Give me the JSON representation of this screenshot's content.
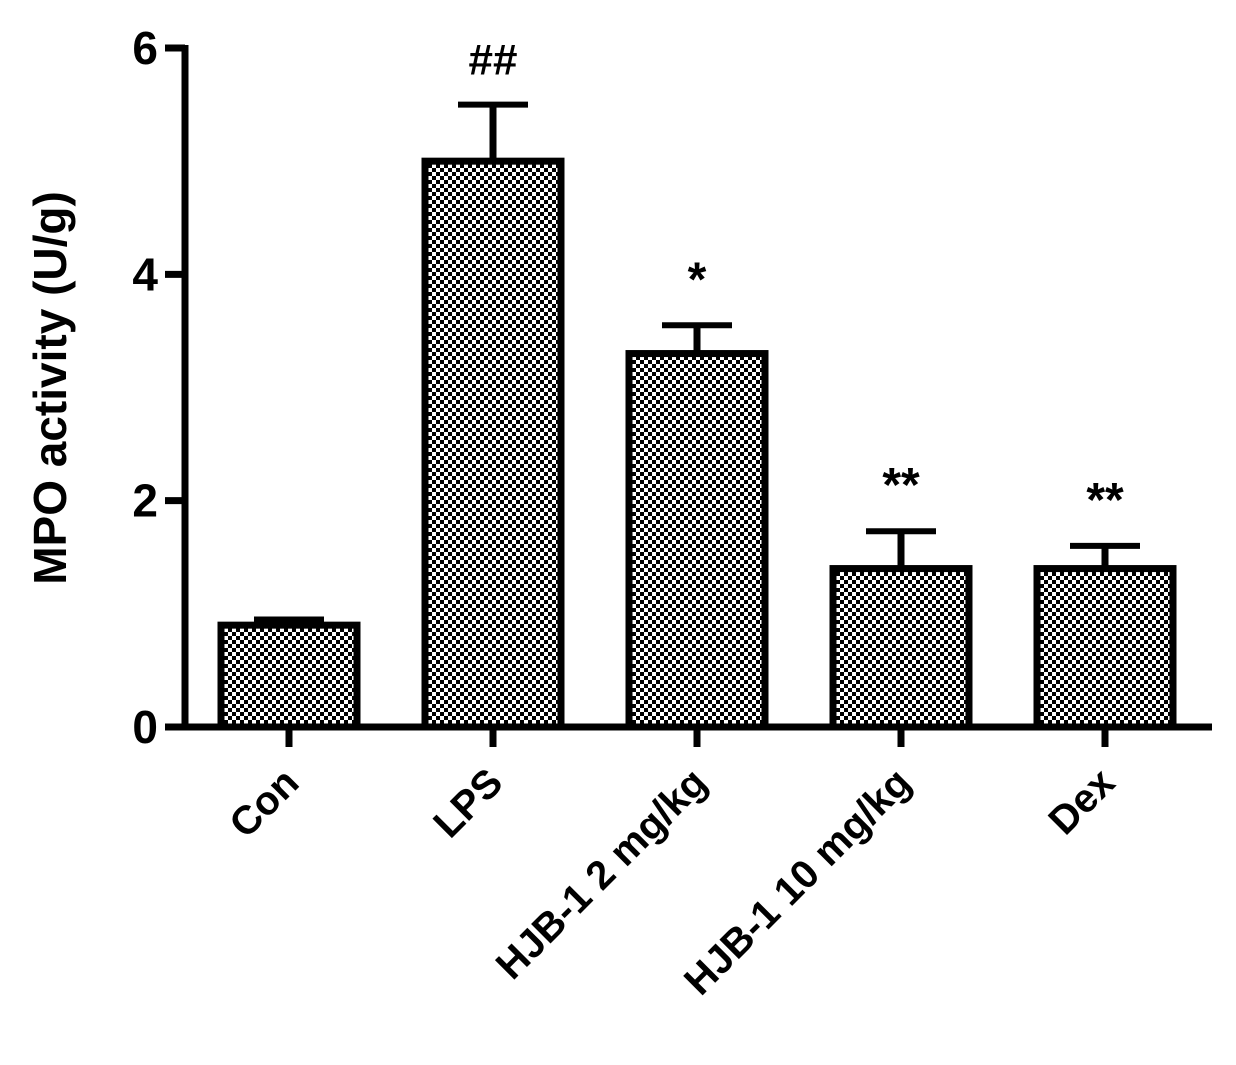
{
  "chart_data": {
    "type": "bar",
    "title": "",
    "xlabel": "",
    "ylabel": "MPO activity (U/g)",
    "ylim": [
      0,
      6
    ],
    "yticks": [
      0,
      2,
      4,
      6
    ],
    "grid": false,
    "categories": [
      "Con",
      "LPS",
      "HJB-1 2 mg/kg",
      "HJB-1 10 mg/kg",
      "Dex"
    ],
    "values": [
      0.9,
      5.0,
      3.3,
      1.4,
      1.4
    ],
    "errors": [
      0.05,
      0.5,
      0.25,
      0.33,
      0.2
    ],
    "annotations": [
      "",
      "##",
      "*",
      "**",
      "**"
    ],
    "bar_fill": "checkerboard",
    "colors": {
      "bar_dark": "#000000",
      "bar_light": "#ffffff",
      "axis": "#000000"
    }
  }
}
